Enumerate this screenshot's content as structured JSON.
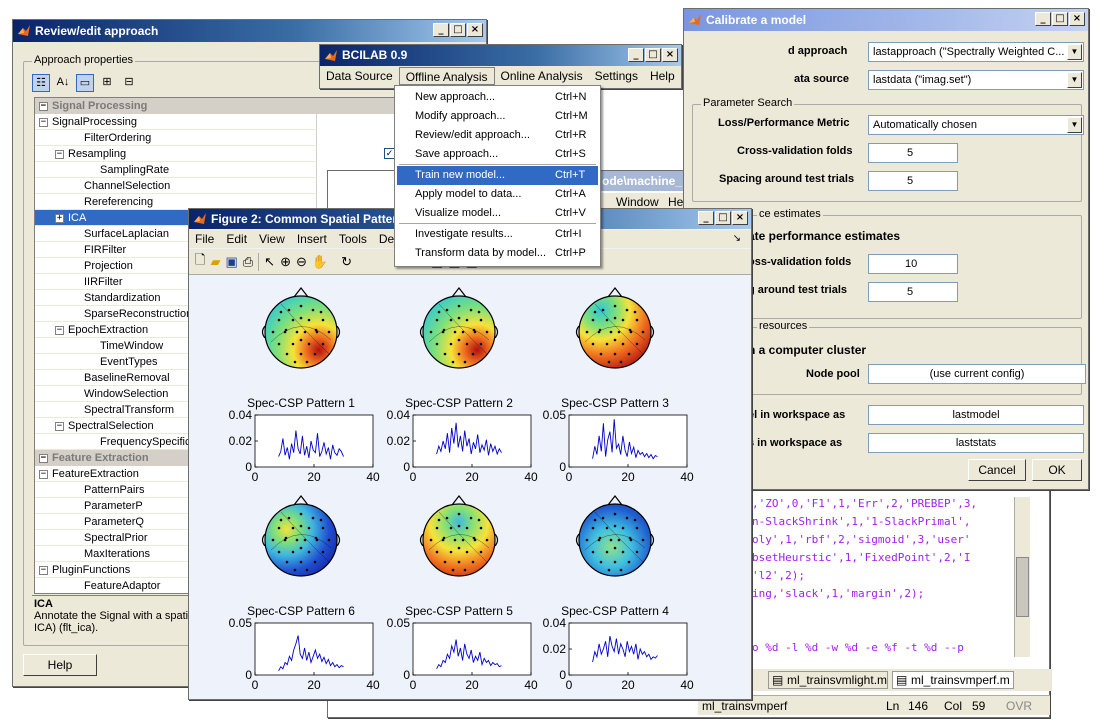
{
  "review": {
    "title": "Review/edit approach",
    "group_label": "Approach properties",
    "rows": [
      {
        "label": "Signal Processing",
        "cat": true,
        "pm": "−",
        "indent": 0
      },
      {
        "label": "SignalProcessing",
        "pm": "−",
        "indent": 0
      },
      {
        "label": "FilterOrdering",
        "indent": 2
      },
      {
        "label": "Resampling",
        "pm": "−",
        "indent": 1,
        "check": "✓"
      },
      {
        "label": "SamplingRate",
        "indent": 3
      },
      {
        "label": "ChannelSelection",
        "indent": 2,
        "check": ""
      },
      {
        "label": "Rereferencing",
        "indent": 2,
        "check": ""
      },
      {
        "label": "ICA",
        "pm": "+",
        "indent": 1,
        "selected": true
      },
      {
        "label": "SurfaceLaplacian",
        "indent": 2
      },
      {
        "label": "FIRFilter",
        "indent": 2
      },
      {
        "label": "Projection",
        "indent": 2
      },
      {
        "label": "IIRFilter",
        "indent": 2
      },
      {
        "label": "Standardization",
        "indent": 2
      },
      {
        "label": "SparseReconstruction",
        "indent": 2
      },
      {
        "label": "EpochExtraction",
        "pm": "−",
        "indent": 1
      },
      {
        "label": "TimeWindow",
        "indent": 3
      },
      {
        "label": "EventTypes",
        "indent": 3
      },
      {
        "label": "BaselineRemoval",
        "indent": 2
      },
      {
        "label": "WindowSelection",
        "indent": 2
      },
      {
        "label": "SpectralTransform",
        "indent": 2
      },
      {
        "label": "SpectralSelection",
        "pm": "−",
        "indent": 1
      },
      {
        "label": "FrequencySpecification",
        "indent": 3
      },
      {
        "label": "Feature Extraction",
        "cat": true,
        "pm": "−",
        "indent": 0
      },
      {
        "label": "FeatureExtraction",
        "pm": "−",
        "indent": 0
      },
      {
        "label": "PatternPairs",
        "indent": 2
      },
      {
        "label": "ParameterP",
        "indent": 2
      },
      {
        "label": "ParameterQ",
        "indent": 2
      },
      {
        "label": "SpectralPrior",
        "indent": 2
      },
      {
        "label": "MaxIterations",
        "indent": 2
      },
      {
        "label": "PluginFunctions",
        "pm": "−",
        "indent": 0
      },
      {
        "label": "FeatureAdaptor",
        "indent": 2
      }
    ],
    "desc_title": "ICA",
    "desc_text_1": "Annotate the Signal with a spati",
    "desc_text_2": "ICA) (flt_ica).",
    "help_label": "Help"
  },
  "bcilab": {
    "title": "BCILAB 0.9",
    "menus": [
      "Data Source",
      "Offline Analysis",
      "Online Analysis",
      "Settings",
      "Help"
    ],
    "dropdown": [
      {
        "label": "New approach...",
        "sc": "Ctrl+N"
      },
      {
        "label": "Modify approach...",
        "sc": "Ctrl+M"
      },
      {
        "label": "Review/edit approach...",
        "sc": "Ctrl+R"
      },
      {
        "label": "Save approach...",
        "sc": "Ctrl+S"
      },
      {
        "label": "Train new model...",
        "sc": "Ctrl+T",
        "hi": true
      },
      {
        "label": "Apply model to data...",
        "sc": "Ctrl+A"
      },
      {
        "label": "Visualize model...",
        "sc": "Ctrl+V"
      },
      {
        "label": "Investigate results...",
        "sc": "Ctrl+I"
      },
      {
        "label": "Transform data by model...",
        "sc": "Ctrl+P"
      }
    ]
  },
  "editor": {
    "title_frag": "ode\\machine_",
    "menu_frag": [
      "Window",
      "Hel"
    ],
    "lines": [
      ",'ZO',0,'F1',1,'Err',2,'PREBEP',3,",
      "n-SlackShrink',1,'1-SlackPrimal',",
      "oly',1,'rbf',2,'sigmoid',3,'user'",
      "bsetHeurstic',1,'FixedPoint',2,'I",
      "'l2',2);",
      "ing,'slack',1,'margin',2);",
      "",
      "",
      "o %d -l %d -w %d -e %f -t %d --p"
    ],
    "tabs": [
      "ml_trainsvmlight.m",
      "ml_trainsvmperf.m"
    ],
    "status_file": "ml_trainsvmperf",
    "status_ln_label": "Ln",
    "status_ln": "146",
    "status_col_label": "Col",
    "status_col": "59",
    "status_ovr": "OVR"
  },
  "calibrate": {
    "title": "Calibrate a model",
    "approach_label": "d approach",
    "approach_value": "lastapproach (\"Spectrally Weighted C...",
    "source_label": "ata source",
    "source_value": "lastdata (\"imag.set\")",
    "param_group": "Parameter Search",
    "metric_label": "Loss/Performance Metric",
    "metric_value": "Automatically chosen",
    "folds_label": "Cross-validation folds",
    "folds_value": "5",
    "spacing_label": "Spacing around test trials",
    "spacing_value": "5",
    "perf_group": "ce estimates",
    "perf_check_label": "ate performance estimates",
    "perf_folds_label": "oss-validation folds",
    "perf_folds_value": "10",
    "perf_spacing_label": "g around test trials",
    "perf_spacing_value": "5",
    "res_group": "resources",
    "cluster_label": "n a computer cluster",
    "nodepool_label": "Node pool",
    "nodepool_value": "(use current config)",
    "model_label": "el in workspace as",
    "model_value": "lastmodel",
    "stats_label": "s in workspace as",
    "stats_value": "laststats",
    "cancel_label": "Cancel",
    "ok_label": "OK"
  },
  "figure": {
    "title": "Figure 2: Common Spatial Patter",
    "menus": [
      "File",
      "Edit",
      "View",
      "Insert",
      "Tools",
      "Desk"
    ],
    "line_color": "#0000cc",
    "plots": [
      {
        "title": "Spec-CSP Pattern 1",
        "ymax": 0.04,
        "yticks": [
          "0.04",
          "0.02",
          "0"
        ],
        "map": "warmbr",
        "values": [
          0.008,
          0.012,
          0.022,
          0.009,
          0.015,
          0.006,
          0.018,
          0.011,
          0.028,
          0.014,
          0.01,
          0.024,
          0.009,
          0.016,
          0.007,
          0.02,
          0.013,
          0.011,
          0.026,
          0.008,
          0.012,
          0.019,
          0.01,
          0.015,
          0.006,
          0.017,
          0.011,
          0.009,
          0.014,
          0.012,
          0.008
        ]
      },
      {
        "title": "Spec-CSP Pattern 2",
        "ymax": 0.04,
        "yticks": [
          "0.04",
          "0.02",
          "0"
        ],
        "map": "warmbr",
        "values": [
          0.01,
          0.016,
          0.012,
          0.02,
          0.014,
          0.026,
          0.011,
          0.03,
          0.018,
          0.034,
          0.015,
          0.024,
          0.012,
          0.028,
          0.016,
          0.022,
          0.01,
          0.019,
          0.014,
          0.025,
          0.011,
          0.017,
          0.013,
          0.021,
          0.009,
          0.018,
          0.012,
          0.016,
          0.01,
          0.014,
          0.011
        ]
      },
      {
        "title": "Spec-CSP Pattern 3",
        "ymax": 0.05,
        "yticks": [
          "0.05",
          "0"
        ],
        "map": "warmtr",
        "values": [
          0.008,
          0.02,
          0.012,
          0.03,
          0.015,
          0.042,
          0.01,
          0.026,
          0.034,
          0.014,
          0.046,
          0.018,
          0.022,
          0.012,
          0.03,
          0.016,
          0.01,
          0.024,
          0.013,
          0.019,
          0.009,
          0.016,
          0.012,
          0.014,
          0.01,
          0.013,
          0.009,
          0.012,
          0.008,
          0.011,
          0.01
        ]
      },
      {
        "title": "Spec-CSP Pattern 6",
        "ymax": 0.05,
        "yticks": [
          "0.05",
          "0"
        ],
        "map": "coolbl",
        "values": [
          0.004,
          0.008,
          0.006,
          0.012,
          0.01,
          0.018,
          0.014,
          0.024,
          0.03,
          0.038,
          0.02,
          0.016,
          0.026,
          0.014,
          0.022,
          0.012,
          0.018,
          0.024,
          0.016,
          0.02,
          0.013,
          0.017,
          0.011,
          0.015,
          0.009,
          0.012,
          0.008,
          0.01,
          0.007,
          0.009,
          0.008
        ]
      },
      {
        "title": "Spec-CSP Pattern 5",
        "ymax": 0.05,
        "yticks": [
          "0.05",
          "0"
        ],
        "map": "warmc",
        "values": [
          0.006,
          0.01,
          0.008,
          0.014,
          0.012,
          0.02,
          0.016,
          0.028,
          0.022,
          0.034,
          0.018,
          0.026,
          0.014,
          0.03,
          0.02,
          0.016,
          0.024,
          0.012,
          0.018,
          0.014,
          0.022,
          0.01,
          0.016,
          0.012,
          0.014,
          0.009,
          0.012,
          0.01,
          0.011,
          0.008,
          0.009
        ]
      },
      {
        "title": "Spec-CSP Pattern 4",
        "ymax": 0.04,
        "yticks": [
          "0.04",
          "0.02",
          "0"
        ],
        "map": "coolc",
        "values": [
          0.01,
          0.018,
          0.014,
          0.024,
          0.016,
          0.02,
          0.026,
          0.014,
          0.03,
          0.022,
          0.018,
          0.028,
          0.016,
          0.024,
          0.02,
          0.014,
          0.026,
          0.018,
          0.022,
          0.016,
          0.024,
          0.012,
          0.02,
          0.016,
          0.018,
          0.014,
          0.016,
          0.012,
          0.014,
          0.013,
          0.015
        ]
      }
    ],
    "xticks": [
      "0",
      "20",
      "40"
    ]
  }
}
